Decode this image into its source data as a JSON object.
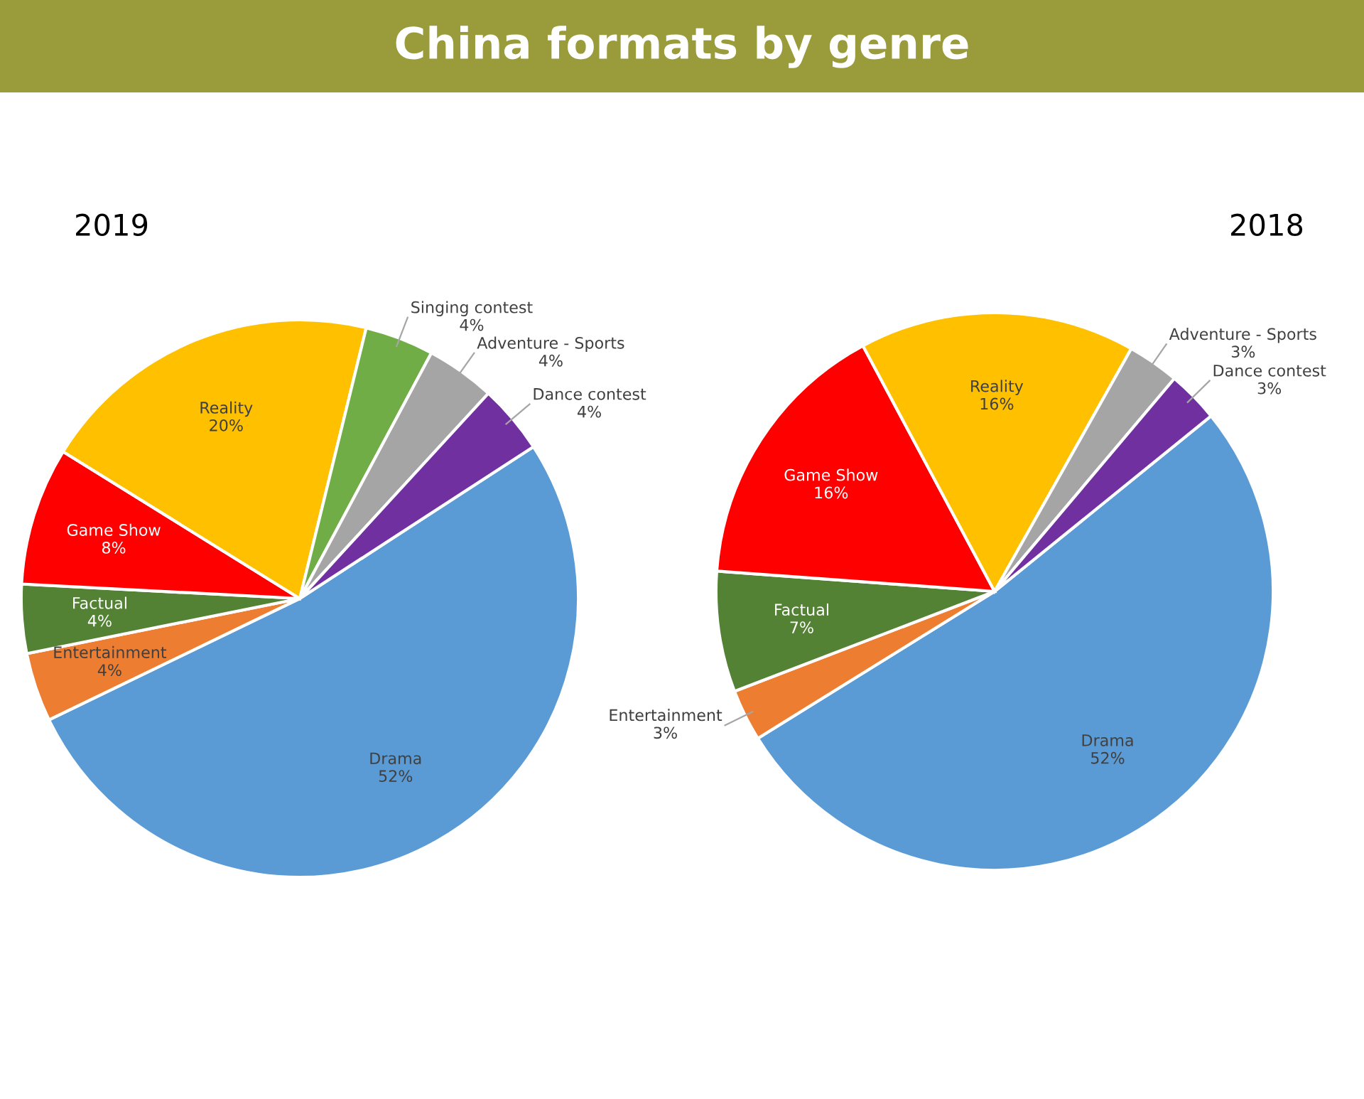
{
  "chart_data": [
    {
      "type": "pie",
      "title": "China formats by genre",
      "subtitle": "2019",
      "categories": [
        "Drama",
        "Entertainment",
        "Factual",
        "Game Show",
        "Reality",
        "Singing contest",
        "Adventure - Sports",
        "Dance contest"
      ],
      "values": [
        52,
        4,
        4,
        8,
        20,
        4,
        4,
        4
      ],
      "value_labels": [
        "52%",
        "4%",
        "4%",
        "8%",
        "20%",
        "4%",
        "4%",
        "4%"
      ],
      "colors": [
        "#5b9bd5",
        "#ed7d31",
        "#548235",
        "#ff0000",
        "#ffc000",
        "#70ad47",
        "#a5a5a5",
        "#7030a0"
      ]
    },
    {
      "type": "pie",
      "subtitle": "2018",
      "categories": [
        "Drama",
        "Entertainment",
        "Factual",
        "Game Show",
        "Reality",
        "Adventure - Sports",
        "Dance contest"
      ],
      "values": [
        52,
        3,
        7,
        16,
        16,
        3,
        3
      ],
      "value_labels": [
        "52%",
        "3%",
        "7%",
        "16%",
        "16%",
        "3%",
        "3%"
      ],
      "colors": [
        "#5b9bd5",
        "#ed7d31",
        "#548235",
        "#ff0000",
        "#ffc000",
        "#a5a5a5",
        "#7030a0"
      ]
    }
  ]
}
